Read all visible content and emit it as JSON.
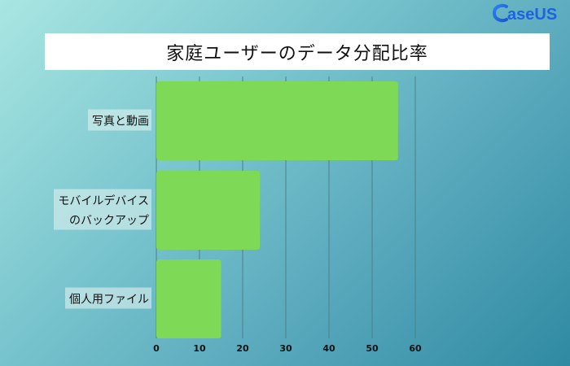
{
  "logo": {
    "text": "aseUS"
  },
  "chart_data": {
    "type": "bar",
    "orientation": "horizontal",
    "title": "家庭ユーザーのデータ分配比率",
    "categories": [
      [
        "写真と動画"
      ],
      [
        "モバイルデバイス",
        "のバックアップ"
      ],
      [
        "個人用ファイル"
      ]
    ],
    "values": [
      56,
      24,
      15
    ],
    "xlim": [
      0,
      60
    ],
    "xticks": [
      0,
      10,
      20,
      30,
      40,
      50,
      60
    ],
    "xlabel": "",
    "ylabel": "",
    "grid": true,
    "legend": "none",
    "colors": {
      "bar": "#7ed957",
      "grid": "#4e7f88",
      "label_bg": "#ddf0ee"
    }
  }
}
